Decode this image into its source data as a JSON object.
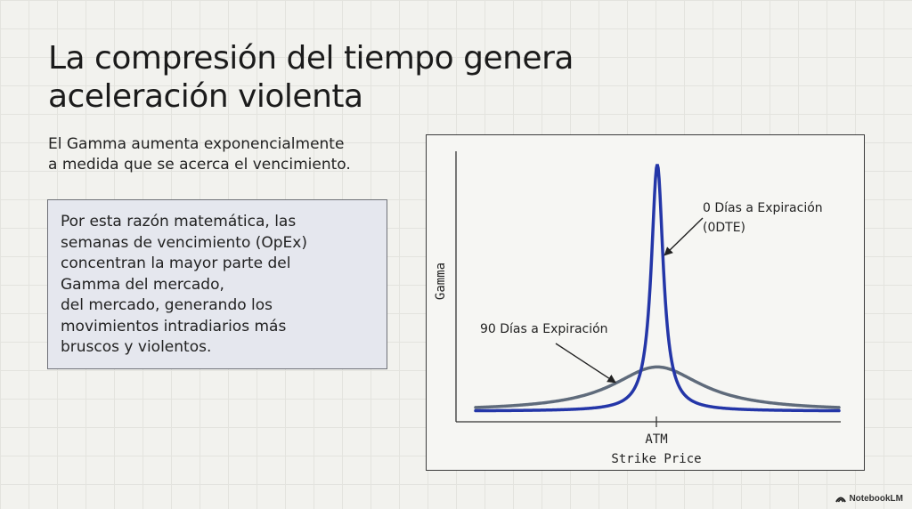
{
  "title_lines": [
    "La compresión del tiempo genera",
    "aceleración violenta"
  ],
  "subtitle_lines": [
    "El Gamma aumenta exponencialmente",
    "a medida que se acerca el vencimiento."
  ],
  "note_lines": [
    "Por esta razón matemática, las",
    "semanas de vencimiento (OpEx)",
    "concentran la mayor parte del",
    "Gamma del mercado,",
    "del mercado, generando los",
    "movimientos intradiarios más",
    "bruscos y violentos."
  ],
  "brand": {
    "label": "NotebookLM",
    "icon": "notebooklm-logo-icon"
  },
  "chart_data": {
    "type": "line",
    "title": "",
    "xlabel": "Strike Price",
    "ylabel": "Gamma",
    "x_tick_labels": [
      "ATM"
    ],
    "x_range": [
      -1,
      1
    ],
    "ylim": [
      0,
      1
    ],
    "grid": false,
    "legend": "none",
    "series": [
      {
        "name": "",
        "color": "#2436a8",
        "peak": 0.95,
        "peak_x": 0,
        "width": 0.04
      },
      {
        "name": "",
        "color": "#5f6b7b",
        "peak": 0.17,
        "peak_x": 0,
        "width": 0.3
      }
    ],
    "annotations": [
      {
        "series": 0,
        "lines": [
          "0 Días a Expiración",
          "(0DTE)"
        ],
        "at_x": 0.04,
        "at_y": 0.6
      },
      {
        "series": 1,
        "lines": [
          "90 Días a Expiración"
        ],
        "at_x": -0.23,
        "at_y": 0.11
      }
    ]
  }
}
